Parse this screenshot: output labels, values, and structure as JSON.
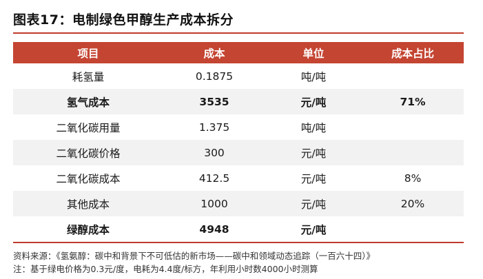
{
  "title": "图表17：电制绿色甲醇生产成本拆分",
  "table": {
    "headers": [
      "项目",
      "成本",
      "单位",
      "成本占比"
    ],
    "rows": [
      {
        "item": "耗氢量",
        "cost": "0.1875",
        "unit": "吨/吨",
        "share": "",
        "bold": false
      },
      {
        "item": "氢气成本",
        "cost": "3535",
        "unit": "元/吨",
        "share": "71%",
        "bold": true
      },
      {
        "item": "二氧化碳用量",
        "cost": "1.375",
        "unit": "吨/吨",
        "share": "",
        "bold": false
      },
      {
        "item": "二氧化碳价格",
        "cost": "300",
        "unit": "元/吨",
        "share": "",
        "bold": false
      },
      {
        "item": "二氧化碳成本",
        "cost": "412.5",
        "unit": "元/吨",
        "share": "8%",
        "bold": false
      },
      {
        "item": "其他成本",
        "cost": "1000",
        "unit": "元/吨",
        "share": "20%",
        "bold": false
      },
      {
        "item": "绿醇成本",
        "cost": "4948",
        "unit": "元/吨",
        "share": "",
        "bold": true
      }
    ]
  },
  "notes": {
    "source": "资料来源：《氢氨醇：碳中和背景下不可低估的新市场——碳中和领域动态追踪（一百六十四）》",
    "note": "注：基于绿电价格为0.3元/度，电耗为4.4度/标方，年利用小时数4000小时测算"
  }
}
